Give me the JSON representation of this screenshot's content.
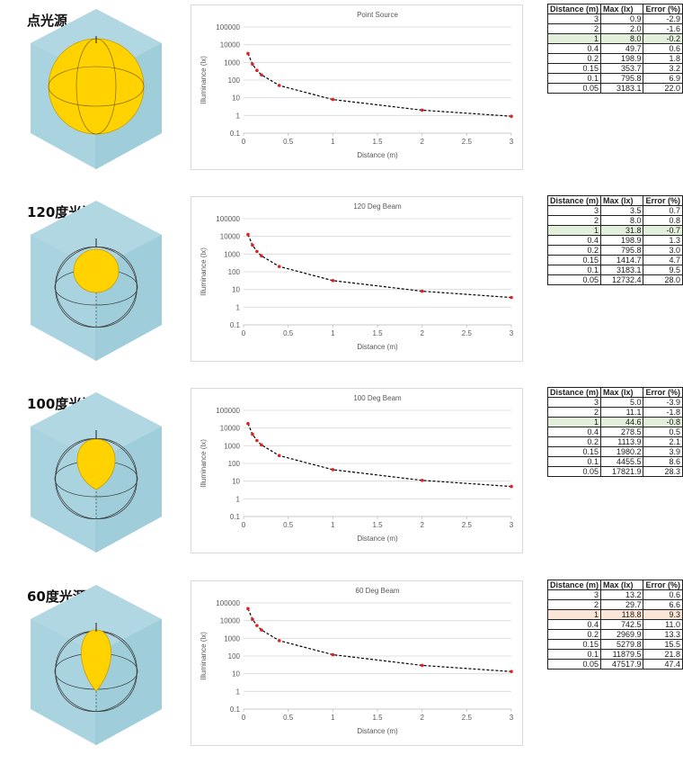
{
  "sections": [
    {
      "title": "点光源",
      "chart": {
        "title": "Point Source"
      },
      "table": {
        "headers": [
          "Distance (m)",
          "Max (lx)",
          "Error (%)"
        ],
        "rows": [
          {
            "d": "3",
            "max": "0.9",
            "err": "-2.9"
          },
          {
            "d": "2",
            "max": "2.0",
            "err": "-1.6"
          },
          {
            "d": "1",
            "max": "8.0",
            "err": "-0.2",
            "hl": "green"
          },
          {
            "d": "0.4",
            "max": "49.7",
            "err": "0.6"
          },
          {
            "d": "0.2",
            "max": "198.9",
            "err": "1.8"
          },
          {
            "d": "0.15",
            "max": "353.7",
            "err": "3.2"
          },
          {
            "d": "0.1",
            "max": "795.8",
            "err": "6.9"
          },
          {
            "d": "0.05",
            "max": "3183.1",
            "err": "22.0"
          }
        ]
      }
    },
    {
      "title": "120度光源",
      "chart": {
        "title": "120 Deg Beam"
      },
      "table": {
        "headers": [
          "Distance (m)",
          "Max (lx)",
          "Error (%)"
        ],
        "rows": [
          {
            "d": "3",
            "max": "3.5",
            "err": "0.7"
          },
          {
            "d": "2",
            "max": "8.0",
            "err": "0.8"
          },
          {
            "d": "1",
            "max": "31.8",
            "err": "-0.7",
            "hl": "green"
          },
          {
            "d": "0.4",
            "max": "198.9",
            "err": "1.3"
          },
          {
            "d": "0.2",
            "max": "795.8",
            "err": "3.0"
          },
          {
            "d": "0.15",
            "max": "1414.7",
            "err": "4.7"
          },
          {
            "d": "0.1",
            "max": "3183.1",
            "err": "9.5"
          },
          {
            "d": "0.05",
            "max": "12732.4",
            "err": "28.0"
          }
        ]
      }
    },
    {
      "title": "100度光源",
      "chart": {
        "title": "100 Deg Beam"
      },
      "table": {
        "headers": [
          "Distance (m)",
          "Max (lx)",
          "Error (%)"
        ],
        "rows": [
          {
            "d": "3",
            "max": "5.0",
            "err": "-3.9"
          },
          {
            "d": "2",
            "max": "11.1",
            "err": "-1.8"
          },
          {
            "d": "1",
            "max": "44.6",
            "err": "-0.8",
            "hl": "green"
          },
          {
            "d": "0.4",
            "max": "278.5",
            "err": "0.5"
          },
          {
            "d": "0.2",
            "max": "1113.9",
            "err": "2.1"
          },
          {
            "d": "0.15",
            "max": "1980.2",
            "err": "3.9"
          },
          {
            "d": "0.1",
            "max": "4455.5",
            "err": "8.6"
          },
          {
            "d": "0.05",
            "max": "17821.9",
            "err": "28.3"
          }
        ]
      }
    },
    {
      "title": "60度光源",
      "chart": {
        "title": "60 Deg Beam"
      },
      "table": {
        "headers": [
          "Distance (m)",
          "Max (lx)",
          "Error (%)"
        ],
        "rows": [
          {
            "d": "3",
            "max": "13.2",
            "err": "0.6"
          },
          {
            "d": "2",
            "max": "29.7",
            "err": "6.6"
          },
          {
            "d": "1",
            "max": "118.8",
            "err": "9.3",
            "hl": "red"
          },
          {
            "d": "0.4",
            "max": "742.5",
            "err": "11.0"
          },
          {
            "d": "0.2",
            "max": "2969.9",
            "err": "13.3"
          },
          {
            "d": "0.15",
            "max": "5279.8",
            "err": "15.5"
          },
          {
            "d": "0.1",
            "max": "11879.5",
            "err": "21.8"
          },
          {
            "d": "0.05",
            "max": "47517.9",
            "err": "47.4"
          }
        ]
      }
    }
  ],
  "colors": {
    "cube_face": "#a9d3df",
    "lamp": "#ffd200",
    "marker": "#e02020",
    "trend": "#000000",
    "highlight_green": "#e2efda",
    "highlight_red": "#fbe5d6"
  },
  "chart_data": [
    {
      "type": "scatter",
      "title": "Point Source",
      "xlabel": "Distance (m)",
      "ylabel": "Illuminance (lx)",
      "xlim": [
        0,
        3
      ],
      "ylim": [
        0.1,
        100000
      ],
      "yscale": "log",
      "xticks": [
        "0",
        "0.5",
        "1",
        "1.5",
        "2",
        "2.5",
        "3"
      ],
      "yticks": [
        "0.1",
        "1",
        "10",
        "100",
        "1000",
        "10000",
        "100000"
      ],
      "grid": true,
      "series": [
        {
          "x": [
            3,
            2,
            1,
            0.4,
            0.2,
            0.15,
            0.1,
            0.05
          ],
          "y": [
            0.9,
            2.0,
            8.0,
            49.7,
            198.9,
            353.7,
            795.8,
            3183.1
          ],
          "marker": "red dot",
          "trendline": "black dashed"
        }
      ]
    },
    {
      "type": "scatter",
      "title": "120 Deg Beam",
      "xlabel": "Distance (m)",
      "ylabel": "Illuminance (lx)",
      "xlim": [
        0,
        3
      ],
      "ylim": [
        0.1,
        100000
      ],
      "yscale": "log",
      "xticks": [
        "0",
        "0.5",
        "1",
        "1.5",
        "2",
        "2.5",
        "3"
      ],
      "yticks": [
        "0.1",
        "1",
        "10",
        "100",
        "1000",
        "10000",
        "100000"
      ],
      "grid": true,
      "series": [
        {
          "x": [
            3,
            2,
            1,
            0.4,
            0.2,
            0.15,
            0.1,
            0.05
          ],
          "y": [
            3.5,
            8.0,
            31.8,
            198.9,
            795.8,
            1414.7,
            3183.1,
            12732.4
          ],
          "marker": "red dot",
          "trendline": "black dashed"
        }
      ]
    },
    {
      "type": "scatter",
      "title": "100 Deg Beam",
      "xlabel": "Distance (m)",
      "ylabel": "Illuminance (lx)",
      "xlim": [
        0,
        3
      ],
      "ylim": [
        0.1,
        100000
      ],
      "yscale": "log",
      "xticks": [
        "0",
        "0.5",
        "1",
        "1.5",
        "2",
        "2.5",
        "3"
      ],
      "yticks": [
        "0.1",
        "1",
        "10",
        "100",
        "1000",
        "10000",
        "100000"
      ],
      "grid": true,
      "series": [
        {
          "x": [
            3,
            2,
            1,
            0.4,
            0.2,
            0.15,
            0.1,
            0.05
          ],
          "y": [
            5.0,
            11.1,
            44.6,
            278.5,
            1113.9,
            1980.2,
            4455.5,
            17821.9
          ],
          "marker": "red dot",
          "trendline": "black dashed"
        }
      ]
    },
    {
      "type": "scatter",
      "title": "60 Deg Beam",
      "xlabel": "Distance (m)",
      "ylabel": "Illuminance (lx)",
      "xlim": [
        0,
        3
      ],
      "ylim": [
        0.1,
        100000
      ],
      "yscale": "log",
      "xticks": [
        "0",
        "0.5",
        "1",
        "1.5",
        "2",
        "2.5",
        "3"
      ],
      "yticks": [
        "0.1",
        "1",
        "10",
        "100",
        "1000",
        "10000",
        "100000"
      ],
      "grid": true,
      "series": [
        {
          "x": [
            3,
            2,
            1,
            0.4,
            0.2,
            0.15,
            0.1,
            0.05
          ],
          "y": [
            13.2,
            29.7,
            118.8,
            742.5,
            2969.9,
            5279.8,
            11879.5,
            47517.9
          ],
          "marker": "red dot",
          "trendline": "black dashed"
        }
      ]
    }
  ]
}
